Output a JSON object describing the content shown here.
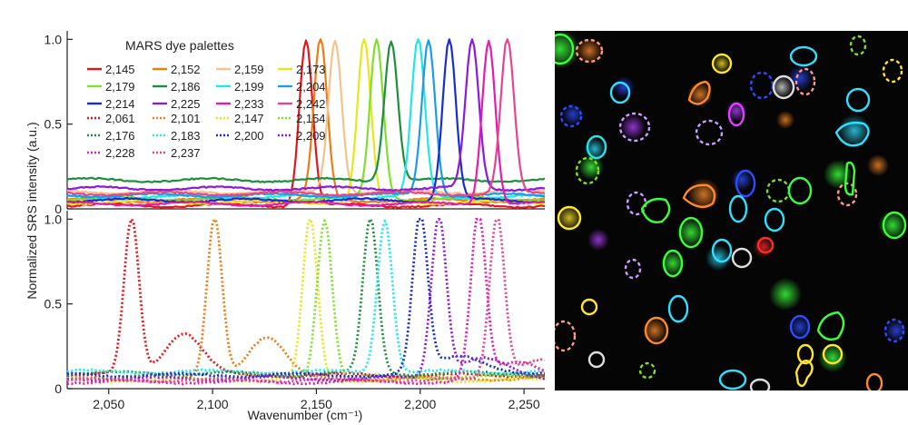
{
  "figure": {
    "ylabel": "Normalized SRS intensity (a.u.)",
    "xlabel": "Wavenumber (cm⁻¹)",
    "legend_title": "MARS dye palettes"
  },
  "chart_data": {
    "type": "line",
    "title": "",
    "xlabel": "Wavenumber (cm⁻¹)",
    "ylabel": "Normalized SRS intensity (a.u.)",
    "xlim": [
      2030,
      2260
    ],
    "x_ticks": [
      "2,050",
      "2,100",
      "2,150",
      "2,200",
      "2,250"
    ],
    "x_tick_values": [
      2050,
      2100,
      2150,
      2200,
      2250
    ],
    "panels": [
      {
        "name": "top",
        "ylim": [
          0,
          1.05
        ],
        "y_ticks": [
          "0",
          "0.5",
          "1.0"
        ],
        "y_tick_values": [
          0,
          0.5,
          1.0
        ],
        "line_style": "solid",
        "legend": "top-left",
        "series": [
          {
            "name": "2,145",
            "peak": 2145,
            "color": "#e8141c",
            "baseline": 0.02
          },
          {
            "name": "2,152",
            "peak": 2152,
            "color": "#f07a14",
            "baseline": 0.05
          },
          {
            "name": "2,159",
            "peak": 2159,
            "color": "#f5c28e",
            "baseline": 0.1
          },
          {
            "name": "2,173",
            "peak": 2173,
            "color": "#e6e61a",
            "baseline": 0.04
          },
          {
            "name": "2,179",
            "peak": 2179,
            "color": "#7fe02a",
            "baseline": 0.06
          },
          {
            "name": "2,186",
            "peak": 2186,
            "color": "#1c8f3a",
            "baseline": 0.17
          },
          {
            "name": "2,199",
            "peak": 2199,
            "color": "#1fe8e8",
            "baseline": 0.07
          },
          {
            "name": "2,204",
            "peak": 2204,
            "color": "#1a9de8",
            "baseline": 0.08
          },
          {
            "name": "2,214",
            "peak": 2214,
            "color": "#1a2ad6",
            "baseline": 0.05
          },
          {
            "name": "2,225",
            "peak": 2225,
            "color": "#8a1ae0",
            "baseline": 0.12
          },
          {
            "name": "2,233",
            "peak": 2233,
            "color": "#e61ab0",
            "baseline": 0.03
          },
          {
            "name": "2,242",
            "peak": 2242,
            "color": "#e8438c",
            "baseline": 0.09
          }
        ]
      },
      {
        "name": "bottom",
        "ylim": [
          0,
          1.05
        ],
        "y_ticks": [
          "0",
          "0.5",
          "1.0"
        ],
        "y_tick_values": [
          0,
          0.5,
          1.0
        ],
        "line_style": "dotted",
        "series": [
          {
            "name": "2,061",
            "peak": 2061,
            "color": "#e8141c",
            "baseline": 0.08
          },
          {
            "name": "2,101",
            "peak": 2101,
            "color": "#f07a14",
            "baseline": 0.06
          },
          {
            "name": "2,147",
            "peak": 2147,
            "color": "#e6e61a",
            "baseline": 0.05
          },
          {
            "name": "2,154",
            "peak": 2154,
            "color": "#7fe02a",
            "baseline": 0.07
          },
          {
            "name": "2,176",
            "peak": 2176,
            "color": "#1c8f3a",
            "baseline": 0.09
          },
          {
            "name": "2,183",
            "peak": 2183,
            "color": "#1fe8e8",
            "baseline": 0.1
          },
          {
            "name": "2,200",
            "peak": 2200,
            "color": "#1a2ad6",
            "baseline": 0.08
          },
          {
            "name": "2,209",
            "peak": 2209,
            "color": "#8a1ae0",
            "baseline": 0.06
          },
          {
            "name": "2,228",
            "peak": 2228,
            "color": "#e61ab0",
            "baseline": 0.04
          },
          {
            "name": "2,237",
            "peak": 2237,
            "color": "#e8438c",
            "baseline": 0.05
          }
        ]
      }
    ]
  },
  "microscopy_image": {
    "background": "#050505"
  }
}
